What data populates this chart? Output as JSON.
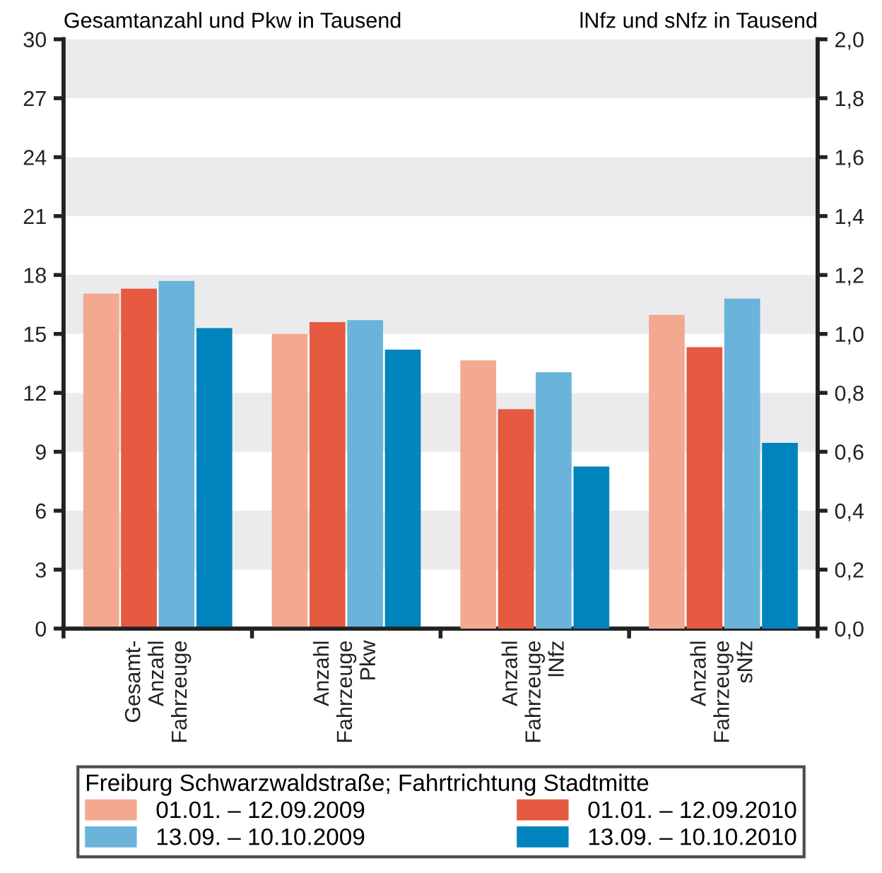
{
  "chart_data": {
    "type": "bar",
    "categories": [
      "Gesamt-\nAnzahl\nFahrzeuge",
      "Anzahl\nFahrzeuge\nPkw",
      "Anzahl\nFahrzeuge\nlNfz",
      "Anzahl\nFahrzeuge\nsNfz"
    ],
    "ylabel": "Gesamtanzahl und Pkw in Tausend",
    "y2label": "lNfz und sNfz in Tausend",
    "legend_title": "Freiburg Schwarzwaldstraße; Fahrtrichtung Stadtmitte",
    "series": [
      {
        "name": "01.01. – 12.09.2009",
        "color": "#f2a98f",
        "values": [
          17.05,
          15.0,
          null,
          null
        ]
      },
      {
        "name": "01.01. – 12.09.2010",
        "color": "#e55a40",
        "values": [
          17.3,
          15.6,
          null,
          null
        ]
      },
      {
        "name": "13.09. – 10.10.2009",
        "color": "#6ab3da",
        "values": [
          17.7,
          15.7,
          null,
          null
        ]
      },
      {
        "name": "13.09. – 10.10.2010",
        "color": "#0084bd",
        "values": [
          15.3,
          14.2,
          null,
          null
        ]
      },
      {
        "color": "#f2a98f",
        "axis": "y2",
        "values": [
          null,
          null,
          0.91,
          1.065
        ]
      },
      {
        "color": "#e55a40",
        "axis": "y2",
        "values": [
          null,
          null,
          0.745,
          0.955
        ]
      },
      {
        "color": "#6ab3da",
        "axis": "y2",
        "values": [
          null,
          null,
          0.87,
          1.12
        ]
      },
      {
        "color": "#0084bd",
        "axis": "y2",
        "values": [
          null,
          null,
          0.55,
          0.63
        ]
      }
    ],
    "ylim": [
      0,
      30
    ],
    "yticks": [
      0,
      3,
      6,
      9,
      12,
      15,
      18,
      21,
      24,
      27,
      30
    ],
    "y2lim": [
      0,
      2.0
    ],
    "y2ticks": [
      {
        "value": 0,
        "label": "0,0"
      },
      {
        "value": 0.2,
        "label": "0,2"
      },
      {
        "value": 0.4,
        "label": "0,4"
      },
      {
        "value": 0.6,
        "label": "0,6"
      },
      {
        "value": 0.8,
        "label": "0,8"
      },
      {
        "value": 1.0,
        "label": "1,0"
      },
      {
        "value": 1.2,
        "label": "1,2"
      },
      {
        "value": 1.4,
        "label": "1,4"
      },
      {
        "value": 1.6,
        "label": "1,6"
      },
      {
        "value": 1.8,
        "label": "1,8"
      },
      {
        "value": 2.0,
        "label": "2,0"
      }
    ],
    "bands": [
      {
        "axis": "y",
        "from": 3,
        "to": 6,
        "color": "#ebebed"
      },
      {
        "axis": "y",
        "from": 9,
        "to": 12,
        "color": "#ebebed"
      },
      {
        "axis": "y",
        "from": 15,
        "to": 18,
        "color": "#ebebed"
      },
      {
        "axis": "y",
        "from": 21,
        "to": 24,
        "color": "#ebebed"
      },
      {
        "axis": "y",
        "from": 27,
        "to": 30,
        "color": "#ebebed"
      }
    ],
    "legend": "bottom"
  }
}
